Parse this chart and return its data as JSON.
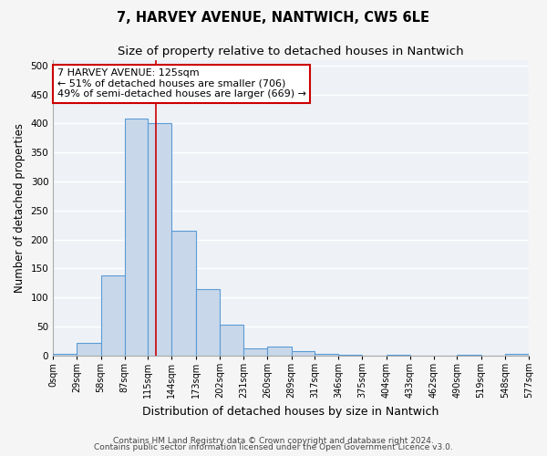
{
  "title": "7, HARVEY AVENUE, NANTWICH, CW5 6LE",
  "subtitle": "Size of property relative to detached houses in Nantwich",
  "xlabel": "Distribution of detached houses by size in Nantwich",
  "ylabel": "Number of detached properties",
  "bin_edges": [
    0,
    29,
    58,
    87,
    115,
    144,
    173,
    202,
    231,
    260,
    289,
    317,
    346,
    375,
    404,
    433,
    462,
    490,
    519,
    548,
    577
  ],
  "bar_heights": [
    2,
    22,
    138,
    408,
    400,
    215,
    115,
    53,
    12,
    15,
    7,
    2,
    1,
    0,
    1,
    0,
    0,
    1,
    0,
    3
  ],
  "bar_color": "#c8d8ea",
  "bar_edge_color": "#5b9bd5",
  "bar_edge_width": 0.8,
  "vline_x": 125,
  "vline_color": "#cc0000",
  "annotation_text": "7 HARVEY AVENUE: 125sqm\n← 51% of detached houses are smaller (706)\n49% of semi-detached houses are larger (669) →",
  "annotation_box_color": "#cc0000",
  "ylim": [
    0,
    510
  ],
  "yticks": [
    0,
    50,
    100,
    150,
    200,
    250,
    300,
    350,
    400,
    450,
    500
  ],
  "background_color": "#eef2f7",
  "grid_color": "#ffffff",
  "footer_line1": "Contains HM Land Registry data © Crown copyright and database right 2024.",
  "footer_line2": "Contains public sector information licensed under the Open Government Licence v3.0.",
  "title_fontsize": 10.5,
  "subtitle_fontsize": 9.5,
  "tick_label_fontsize": 7,
  "ylabel_fontsize": 8.5,
  "xlabel_fontsize": 9,
  "footer_fontsize": 6.5
}
